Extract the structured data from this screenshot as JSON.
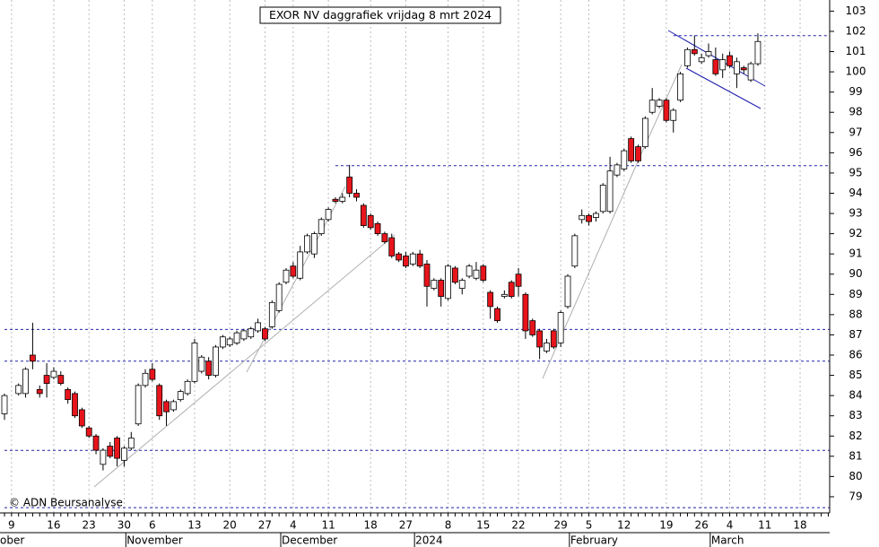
{
  "chart_data": {
    "type": "candlestick",
    "title": "EXOR NV daggrafiek vrijdag 8 mrt 2024",
    "watermark": "© ADN Beursanalyse",
    "categories": [
      null,
      "9",
      null,
      null,
      null,
      null,
      null,
      "16",
      null,
      null,
      null,
      null,
      "23",
      null,
      null,
      null,
      null,
      "30",
      null,
      null,
      null,
      "6",
      null,
      null,
      null,
      null,
      null,
      "13",
      null,
      null,
      null,
      null,
      "20",
      null,
      null,
      null,
      null,
      "27",
      null,
      null,
      null,
      "4",
      null,
      null,
      null,
      null,
      "11",
      null,
      null,
      null,
      null,
      null,
      "18",
      null,
      null,
      null,
      null,
      "27",
      null,
      null,
      null,
      null,
      null,
      "8",
      null,
      null,
      null,
      null,
      "15",
      null,
      null,
      null,
      null,
      "22",
      null,
      null,
      null,
      null,
      null,
      "29",
      null,
      null,
      null,
      "5",
      null,
      null,
      null,
      null,
      "12",
      null,
      null,
      null,
      null,
      null,
      "19",
      null,
      null,
      null,
      null,
      "26",
      null,
      null,
      null,
      "4",
      null,
      null,
      null,
      null,
      "11",
      null,
      null,
      null,
      null,
      "18",
      null,
      null,
      null,
      null
    ],
    "months": [
      "ober",
      null,
      null,
      null,
      null,
      null,
      null,
      null,
      null,
      null,
      null,
      null,
      null,
      null,
      null,
      null,
      null,
      null,
      "November",
      null,
      null,
      null,
      null,
      null,
      null,
      null,
      null,
      null,
      null,
      null,
      null,
      null,
      null,
      null,
      null,
      null,
      null,
      null,
      null,
      null,
      "December",
      null,
      null,
      null,
      null,
      null,
      null,
      null,
      null,
      null,
      null,
      null,
      null,
      null,
      null,
      null,
      null,
      null,
      null,
      "2024",
      null,
      null,
      null,
      null,
      null,
      null,
      null,
      null,
      null,
      null,
      null,
      null,
      null,
      null,
      null,
      null,
      null,
      null,
      null,
      null,
      null,
      "February",
      null,
      null,
      null,
      null,
      null,
      null,
      null,
      null,
      null,
      null,
      null,
      null,
      null,
      null,
      null,
      null,
      null,
      null,
      null,
      "March",
      null,
      null,
      null,
      null,
      null,
      null,
      null,
      null,
      null,
      null,
      null,
      null,
      null,
      null,
      null,
      null
    ],
    "open": [
      83.1,
      null,
      84.1,
      84.1,
      86.0,
      84.3,
      85.0,
      84.9,
      85.0,
      84.3,
      84.1,
      83.3,
      82.4,
      82.0,
      80.6,
      81.5,
      81.9,
      80.8,
      81.4,
      82.6,
      84.5,
      85.3,
      84.5,
      83.7,
      83.3,
      83.8,
      84.1,
      84.7,
      85.2,
      85.7,
      85.0,
      86.4,
      86.5,
      86.6,
      86.8,
      86.9,
      87.2,
      87.3,
      87.4,
      88.2,
      89.6,
      90.4,
      89.8,
      91.1,
      91.0,
      92.0,
      92.7,
      93.7,
      93.6,
      94.8,
      94.0,
      93.4,
      92.9,
      92.5,
      92.0,
      91.8,
      91.0,
      90.9,
      90.5,
      91.0,
      90.5,
      89.3,
      89.7,
      88.8,
      90.3,
      89.3,
      89.9,
      89.8,
      90.4,
      89.1,
      88.3,
      88.9,
      89.6,
      90.0,
      89.0,
      87.7,
      87.2,
      86.2,
      87.2,
      86.6,
      88.4,
      90.4,
      92.7,
      92.9,
      92.8,
      93.1,
      93.1,
      94.9,
      95.2,
      96.7,
      96.3,
      96.3,
      98.0,
      98.3,
      98.6,
      97.6,
      98.6,
      100.3,
      101.1,
      100.5,
      100.8,
      100.6,
      100.1,
      100.8,
      99.9,
      100.2,
      99.6,
      100.4,
      null,
      null,
      null,
      null,
      null,
      null,
      null,
      null,
      null,
      null
    ],
    "high": [
      84.1,
      null,
      84.6,
      85.4,
      87.6,
      84.5,
      85.6,
      85.4,
      85.2,
      84.4,
      84.2,
      83.4,
      82.5,
      82.1,
      81.4,
      81.7,
      82.0,
      81.5,
      82.2,
      84.6,
      85.3,
      85.6,
      84.6,
      83.8,
      83.8,
      84.3,
      84.8,
      86.8,
      86.0,
      85.9,
      86.5,
      87.0,
      86.9,
      87.2,
      87.3,
      87.4,
      87.8,
      87.4,
      88.7,
      89.6,
      90.3,
      90.6,
      91.4,
      92.0,
      92.1,
      92.8,
      93.3,
      93.8,
      94.0,
      95.4,
      94.2,
      93.5,
      93.0,
      92.6,
      92.1,
      92.0,
      91.1,
      91.1,
      91.1,
      91.2,
      90.7,
      89.8,
      89.8,
      90.5,
      90.4,
      89.8,
      90.5,
      90.6,
      90.5,
      89.2,
      88.4,
      89.2,
      89.7,
      90.3,
      89.1,
      87.8,
      87.3,
      86.8,
      87.3,
      88.2,
      90.0,
      92.0,
      93.2,
      93.0,
      93.1,
      94.5,
      95.8,
      95.5,
      96.2,
      96.8,
      96.4,
      97.8,
      99.2,
      98.7,
      98.7,
      98.2,
      100.0,
      101.2,
      101.8,
      100.9,
      101.4,
      101.2,
      100.9,
      101.0,
      100.7,
      100.3,
      100.5,
      101.9,
      null,
      null,
      null,
      null,
      null,
      null,
      null,
      null,
      null,
      null
    ],
    "low": [
      82.8,
      null,
      84.0,
      83.9,
      85.3,
      83.9,
      83.9,
      84.8,
      84.5,
      83.6,
      82.9,
      82.4,
      81.9,
      81.1,
      80.3,
      80.9,
      80.5,
      80.5,
      81.3,
      82.5,
      84.4,
      84.7,
      82.8,
      82.5,
      83.2,
      83.7,
      84.0,
      84.6,
      85.1,
      84.8,
      84.9,
      86.3,
      86.4,
      86.5,
      86.7,
      86.8,
      87.1,
      86.7,
      87.3,
      88.1,
      89.5,
      89.8,
      89.7,
      91.0,
      90.8,
      91.9,
      92.6,
      93.5,
      93.5,
      93.8,
      93.6,
      92.3,
      92.2,
      91.9,
      91.5,
      90.8,
      90.6,
      90.3,
      90.4,
      90.3,
      88.4,
      89.2,
      88.4,
      88.7,
      89.5,
      89.0,
      89.8,
      89.7,
      89.6,
      87.8,
      87.6,
      88.8,
      88.8,
      88.9,
      86.8,
      86.9,
      85.8,
      86.1,
      86.3,
      86.4,
      88.3,
      90.3,
      92.5,
      92.4,
      92.6,
      93.0,
      93.0,
      94.8,
      95.1,
      95.5,
      95.5,
      96.2,
      97.9,
      98.2,
      97.5,
      97.0,
      98.5,
      100.2,
      100.8,
      100.4,
      100.7,
      99.8,
      99.7,
      100.2,
      99.2,
      99.9,
      99.5,
      100.3,
      null,
      null,
      null,
      null,
      null,
      null,
      null,
      null,
      null,
      null
    ],
    "close": [
      84.0,
      null,
      84.5,
      85.3,
      85.7,
      84.1,
      84.6,
      85.2,
      84.6,
      83.8,
      83.0,
      82.5,
      82.0,
      81.3,
      81.3,
      81.0,
      80.9,
      81.4,
      81.9,
      84.5,
      85.1,
      84.8,
      83.0,
      83.2,
      83.7,
      84.2,
      84.7,
      86.6,
      85.9,
      85.0,
      86.4,
      86.9,
      86.8,
      87.1,
      87.2,
      87.3,
      87.6,
      86.8,
      88.6,
      89.5,
      90.2,
      89.9,
      91.1,
      91.9,
      92.0,
      92.7,
      93.2,
      93.6,
      93.8,
      94.0,
      93.8,
      92.4,
      92.3,
      92.0,
      91.6,
      90.9,
      90.7,
      90.4,
      91.0,
      90.4,
      89.4,
      89.7,
      88.9,
      90.4,
      89.6,
      89.7,
      90.4,
      90.2,
      89.7,
      88.4,
      87.7,
      89.0,
      88.9,
      89.4,
      87.2,
      87.0,
      86.4,
      86.6,
      86.4,
      88.1,
      89.9,
      91.9,
      92.9,
      92.6,
      93.0,
      94.4,
      95.1,
      95.4,
      96.1,
      95.6,
      95.6,
      97.7,
      98.6,
      98.6,
      97.6,
      98.1,
      99.9,
      101.1,
      100.9,
      100.7,
      101.0,
      99.9,
      100.6,
      100.3,
      100.5,
      100.1,
      100.4,
      101.5,
      null,
      null,
      null,
      null,
      null,
      null,
      null,
      null,
      null,
      null
    ],
    "up_color": "#ffffff",
    "down_color": "#e8141c",
    "ylim": [
      78.2,
      103.55
    ],
    "yticks": [
      79,
      80,
      81,
      82,
      83,
      84,
      85,
      86,
      87,
      88,
      89,
      90,
      91,
      92,
      93,
      94,
      95,
      96,
      97,
      98,
      99,
      100,
      101,
      102,
      103
    ],
    "support_lines": [
      {
        "value": 87.27,
        "from": 0
      },
      {
        "value": 85.7,
        "from": 0
      },
      {
        "value": 81.29,
        "from": 0
      },
      {
        "value": 78.46,
        "from": 0
      },
      {
        "value": 95.36,
        "from": 47
      },
      {
        "value": 101.79,
        "from": 95
      }
    ],
    "grid": true
  }
}
